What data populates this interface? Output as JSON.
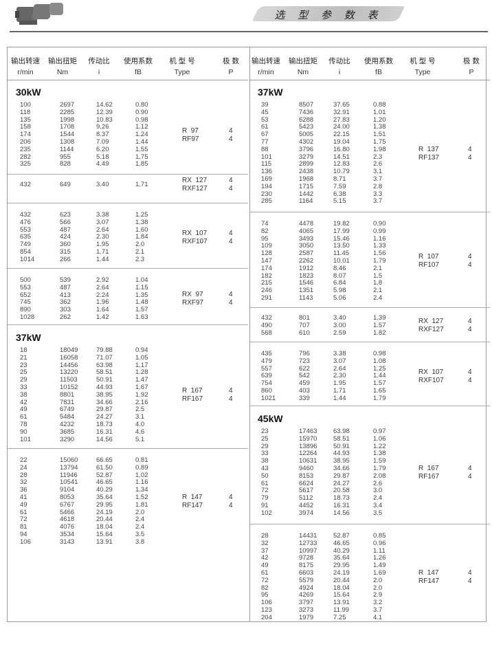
{
  "header": {
    "title": "选 型 参 数 表",
    "motor_image": "gear-motor-icon"
  },
  "columns": [
    {
      "cn": "输出转速",
      "en": "r/min"
    },
    {
      "cn": "输出扭矩",
      "en": "Nm"
    },
    {
      "cn": "传动比",
      "en": "i"
    },
    {
      "cn": "使用系数",
      "en": "fB"
    },
    {
      "cn": "机 型 号",
      "en": "Type"
    },
    {
      "cn": "极  数",
      "en": "P"
    }
  ],
  "left": [
    {
      "heading": "30kW",
      "type": [
        "R  97",
        "RF97"
      ],
      "poles": [
        "4",
        "4"
      ],
      "rows": [
        [
          "100",
          "2697",
          "14.62",
          "0.80"
        ],
        [
          "118",
          "2285",
          "12.39",
          "0.90"
        ],
        [
          "135",
          "1998",
          "10.83",
          "0.98"
        ],
        [
          "158",
          "1708",
          "9.26",
          "1.12"
        ],
        [
          "174",
          "1544",
          "8.37",
          "1.24"
        ],
        [
          "206",
          "1308",
          "7.09",
          "1.44"
        ],
        [
          "235",
          "1144",
          "6.20",
          "1.55"
        ],
        [
          "282",
          "955",
          "5.18",
          "1.75"
        ],
        [
          "325",
          "828",
          "4.49",
          "1.85"
        ]
      ]
    },
    {
      "heading": "",
      "type": [
        "RX  127",
        "RXF127"
      ],
      "poles": [
        "4",
        "4"
      ],
      "rows": [
        [
          "432",
          "649",
          "3.40",
          "1.71"
        ]
      ]
    },
    {
      "heading": "",
      "type": [
        "RX  107",
        "RXF107"
      ],
      "poles": [
        "4",
        "4"
      ],
      "rows": [
        [
          "432",
          "623",
          "3.38",
          "1.25"
        ],
        [
          "476",
          "566",
          "3.07",
          "1.38"
        ],
        [
          "553",
          "487",
          "2.64",
          "1.60"
        ],
        [
          "635",
          "424",
          "2.30",
          "1.84"
        ],
        [
          "749",
          "360",
          "1.95",
          "2.0"
        ],
        [
          "854",
          "315",
          "1.71",
          "2.1"
        ],
        [
          "1014",
          "266",
          "1.44",
          "2.3"
        ]
      ]
    },
    {
      "heading": "",
      "type": [
        "RX  97",
        "RXF97"
      ],
      "poles": [
        "4",
        "4"
      ],
      "rows": [
        [
          "500",
          "539",
          "2.92",
          "1.04"
        ],
        [
          "553",
          "487",
          "2.64",
          "1.15"
        ],
        [
          "652",
          "413",
          "2.24",
          "1.35"
        ],
        [
          "745",
          "362",
          "1.96",
          "1.48"
        ],
        [
          "890",
          "303",
          "1.64",
          "1.57"
        ],
        [
          "1028",
          "262",
          "1.42",
          "1.63"
        ]
      ]
    },
    {
      "heading": "37kW",
      "type": [
        "R  167",
        "RF167"
      ],
      "poles": [
        "4",
        "4"
      ],
      "rows": [
        [
          "18",
          "18049",
          "79.88",
          "0.94"
        ],
        [
          "21",
          "16058",
          "71.07",
          "1.05"
        ],
        [
          "23",
          "14456",
          "63.98",
          "1.17"
        ],
        [
          "25",
          "13220",
          "58.51",
          "1.28"
        ],
        [
          "29",
          "11503",
          "50.91",
          "1.47"
        ],
        [
          "33",
          "10152",
          "44.93",
          "1.67"
        ],
        [
          "38",
          "8801",
          "38.95",
          "1.92"
        ],
        [
          "42",
          "7831",
          "34.66",
          "2.16"
        ],
        [
          "49",
          "6749",
          "29.87",
          "2.5"
        ],
        [
          "61",
          "5484",
          "24.27",
          "3.1"
        ],
        [
          "78",
          "4232",
          "18.73",
          "4.0"
        ],
        [
          "90",
          "3685",
          "16.31",
          "4.6"
        ],
        [
          "101",
          "3290",
          "14.56",
          "5.1"
        ]
      ]
    },
    {
      "heading": "",
      "type": [
        "R  147",
        "RF147"
      ],
      "poles": [
        "4",
        "4"
      ],
      "rows": [
        [
          "22",
          "15060",
          "66.65",
          "0.81"
        ],
        [
          "24",
          "13794",
          "61.50",
          "0.89"
        ],
        [
          "28",
          "11946",
          "52.87",
          "1.02"
        ],
        [
          "32",
          "10541",
          "46.65",
          "1.16"
        ],
        [
          "36",
          "9104",
          "40.29",
          "1.34"
        ],
        [
          "41",
          "8053",
          "35.64",
          "1.52"
        ],
        [
          "49",
          "6767",
          "29.95",
          "1.81"
        ],
        [
          "61",
          "5466",
          "24.19",
          "2.0"
        ],
        [
          "72",
          "4618",
          "20.44",
          "2.4"
        ],
        [
          "81",
          "4076",
          "18.04",
          "2.4"
        ],
        [
          "94",
          "3534",
          "15.64",
          "3.5"
        ],
        [
          "106",
          "3143",
          "13.91",
          "3.8"
        ]
      ]
    }
  ],
  "right": [
    {
      "heading": "37kW",
      "type": [
        "R  137",
        "RF137"
      ],
      "poles": [
        "4",
        "4"
      ],
      "rows": [
        [
          "39",
          "8507",
          "37.65",
          "0.88"
        ],
        [
          "45",
          "7436",
          "32.91",
          "1.01"
        ],
        [
          "53",
          "6288",
          "27.83",
          "1.20"
        ],
        [
          "61",
          "5423",
          "24.00",
          "1.38"
        ],
        [
          "67",
          "5005",
          "22.15",
          "1.51"
        ],
        [
          "77",
          "4302",
          "19.04",
          "1.75"
        ],
        [
          "88",
          "3796",
          "16.80",
          "1.98"
        ],
        [
          "101",
          "3279",
          "14.51",
          "2.3"
        ],
        [
          "115",
          "2899",
          "12.83",
          "2.6"
        ],
        [
          "136",
          "2438",
          "10.79",
          "3.1"
        ],
        [
          "169",
          "1968",
          "8.71",
          "3.7"
        ],
        [
          "194",
          "1715",
          "7.59",
          "2.8"
        ],
        [
          "230",
          "1442",
          "6.38",
          "3.3"
        ],
        [
          "285",
          "1164",
          "5.15",
          "3.7"
        ]
      ]
    },
    {
      "heading": "",
      "type": [
        "R  107",
        "RF107"
      ],
      "poles": [
        "4",
        "4"
      ],
      "rows": [
        [
          "74",
          "4478",
          "19.82",
          "0.90"
        ],
        [
          "82",
          "4065",
          "17.99",
          "0.99"
        ],
        [
          "95",
          "3493",
          "15.46",
          "1.16"
        ],
        [
          "109",
          "3050",
          "13.50",
          "1.33"
        ],
        [
          "128",
          "2587",
          "11.45",
          "1.56"
        ],
        [
          "147",
          "2262",
          "10.01",
          "1.79"
        ],
        [
          "174",
          "1912",
          "8.46",
          "2.1"
        ],
        [
          "182",
          "1823",
          "8.07",
          "1.5"
        ],
        [
          "215",
          "1546",
          "6.84",
          "1.8"
        ],
        [
          "246",
          "1351",
          "5.98",
          "2.1"
        ],
        [
          "291",
          "1143",
          "5.06",
          "2.4"
        ]
      ]
    },
    {
      "heading": "",
      "type": [
        "RX  127",
        "RXF127"
      ],
      "poles": [
        "4",
        "4"
      ],
      "rows": [
        [
          "432",
          "801",
          "3.40",
          "1.39"
        ],
        [
          "490",
          "707",
          "3.00",
          "1.57"
        ],
        [
          "568",
          "610",
          "2.59",
          "1.82"
        ]
      ]
    },
    {
      "heading": "",
      "type": [
        "RX  107",
        "RXF107"
      ],
      "poles": [
        "4",
        "4"
      ],
      "rows": [
        [
          "435",
          "796",
          "3.38",
          "0.98"
        ],
        [
          "479",
          "723",
          "3.07",
          "1.08"
        ],
        [
          "557",
          "622",
          "2.64",
          "1.25"
        ],
        [
          "639",
          "542",
          "2.30",
          "1.44"
        ],
        [
          "754",
          "459",
          "1.95",
          "1.57"
        ],
        [
          "860",
          "403",
          "1.71",
          "1.65"
        ],
        [
          "1021",
          "339",
          "1.44",
          "1.79"
        ]
      ]
    },
    {
      "heading": "45kW",
      "type": [
        "R  167",
        "RF167"
      ],
      "poles": [
        "4",
        "4"
      ],
      "rows": [
        [
          "23",
          "17463",
          "63.98",
          "0.97"
        ],
        [
          "25",
          "15970",
          "58.51",
          "1.06"
        ],
        [
          "29",
          "13896",
          "50.91",
          "1.22"
        ],
        [
          "33",
          "12264",
          "44.93",
          "1.38"
        ],
        [
          "38",
          "10631",
          "38.95",
          "1.59"
        ],
        [
          "43",
          "9460",
          "34.66",
          "1.79"
        ],
        [
          "50",
          "8153",
          "29.87",
          "2.08"
        ],
        [
          "61",
          "6624",
          "24.27",
          "2.6"
        ],
        [
          "72",
          "5617",
          "20.58",
          "3.0"
        ],
        [
          "79",
          "5112",
          "18.73",
          "2.4"
        ],
        [
          "91",
          "4452",
          "16.31",
          "3.4"
        ],
        [
          "102",
          "3974",
          "14.56",
          "3.5"
        ]
      ]
    },
    {
      "heading": "",
      "type": [
        "R  147",
        "RF147"
      ],
      "poles": [
        "4",
        "4"
      ],
      "rows": [
        [
          "28",
          "14431",
          "52.87",
          "0.85"
        ],
        [
          "32",
          "12733",
          "46.65",
          "0.96"
        ],
        [
          "37",
          "10997",
          "40.29",
          "1.11"
        ],
        [
          "42",
          "9728",
          "35.64",
          "1.26"
        ],
        [
          "49",
          "8175",
          "29.95",
          "1.49"
        ],
        [
          "61",
          "6603",
          "24.19",
          "1.69"
        ],
        [
          "72",
          "5579",
          "20.44",
          "2.0"
        ],
        [
          "82",
          "4924",
          "18.04",
          "2.0"
        ],
        [
          "95",
          "4269",
          "15.64",
          "2.9"
        ],
        [
          "106",
          "3797",
          "13.91",
          "3.2"
        ],
        [
          "123",
          "3273",
          "11.99",
          "3.7"
        ],
        [
          "204",
          "1979",
          "7.25",
          "4.1"
        ]
      ]
    }
  ]
}
